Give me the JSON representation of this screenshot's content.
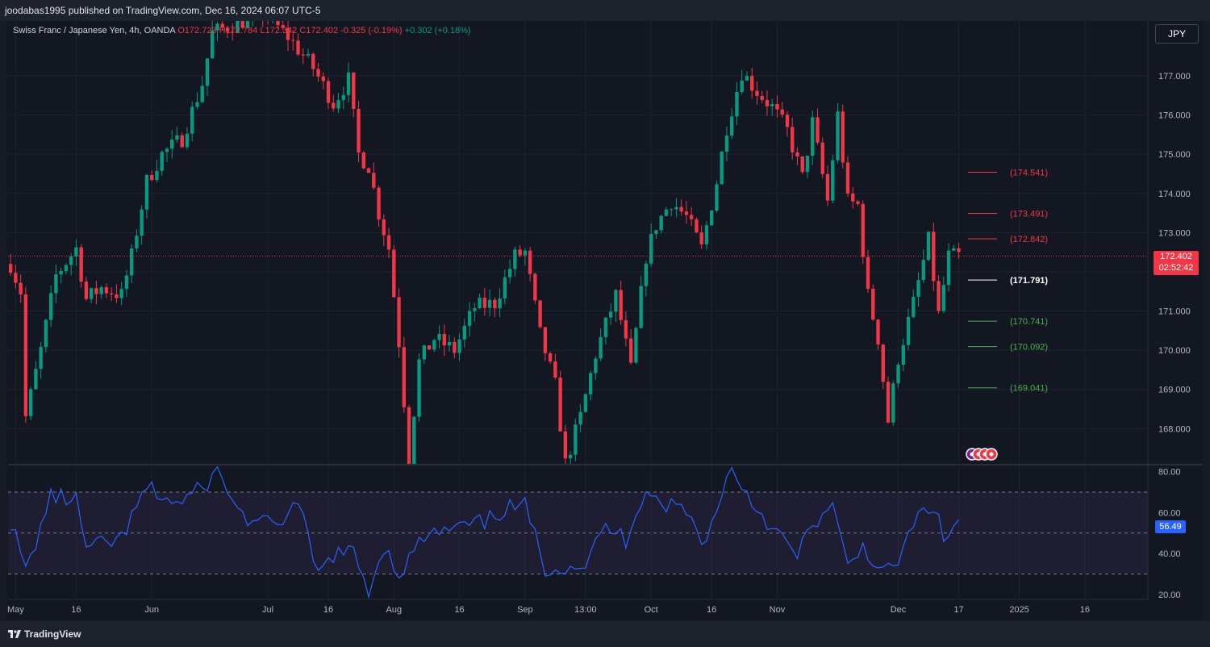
{
  "header": {
    "published": "joodabas1995 published on TradingView.com, Dec 16, 2024 06:07 UTC-5"
  },
  "legend": {
    "symbol": "Swiss Franc / Japanese Yen, 4h, OANDA",
    "o": "O172.723",
    "h": "H172.784",
    "l": "L172.342",
    "c": "C172.402",
    "change": "-0.325 (-0.19%)",
    "change2": "+0.302 (+0.18%)"
  },
  "currency_button": "JPY",
  "last_price": {
    "value": "172.402",
    "countdown": "02:52:42"
  },
  "rsi_value": "56.49",
  "footer": {
    "brand": "TradingView"
  },
  "colors": {
    "up": "#089981",
    "down": "#f23645",
    "rsi": "#2962ff",
    "level_red": "#f23645",
    "level_green": "#4caf50",
    "pivot": "#ffffff"
  },
  "chart_data": [
    {
      "type": "candlestick",
      "symbol": "CHF/JPY",
      "timeframe": "4h",
      "y_ticks": [
        "168.000",
        "169.000",
        "170.000",
        "171.000",
        "172.000",
        "173.000",
        "174.000",
        "175.000",
        "176.000",
        "177.000"
      ],
      "ylim": [
        167.1,
        178.4
      ],
      "x_ticks": [
        "May",
        "16",
        "Jun",
        "Jul",
        "16",
        "Aug",
        "16",
        "Sep",
        "13:00",
        "Oct",
        "16",
        "Nov",
        "Dec",
        "17",
        "2025",
        "16"
      ],
      "x_tick_pos": [
        1,
        13,
        28,
        51,
        63,
        76,
        89,
        102,
        114,
        127,
        139,
        152,
        176,
        188,
        200,
        213
      ],
      "x_range": [
        0,
        226
      ],
      "candles_end_index": 188,
      "keyframes": [
        {
          "x": 0,
          "p": 172.2
        },
        {
          "x": 2,
          "p": 171.5
        },
        {
          "x": 3,
          "p": 168.3
        },
        {
          "x": 6,
          "p": 170.0
        },
        {
          "x": 9,
          "p": 171.9
        },
        {
          "x": 13,
          "p": 172.6
        },
        {
          "x": 15,
          "p": 171.3
        },
        {
          "x": 18,
          "p": 171.6
        },
        {
          "x": 22,
          "p": 171.4
        },
        {
          "x": 24,
          "p": 172.4
        },
        {
          "x": 27,
          "p": 174.3
        },
        {
          "x": 30,
          "p": 175.0
        },
        {
          "x": 34,
          "p": 175.4
        },
        {
          "x": 38,
          "p": 176.8
        },
        {
          "x": 40,
          "p": 178.1
        },
        {
          "x": 44,
          "p": 178.3
        },
        {
          "x": 50,
          "p": 178.6
        },
        {
          "x": 55,
          "p": 178.0
        },
        {
          "x": 60,
          "p": 177.2
        },
        {
          "x": 64,
          "p": 176.3
        },
        {
          "x": 67,
          "p": 176.9
        },
        {
          "x": 69,
          "p": 175.0
        },
        {
          "x": 71,
          "p": 174.7
        },
        {
          "x": 73,
          "p": 173.5
        },
        {
          "x": 75,
          "p": 172.6
        },
        {
          "x": 77,
          "p": 170.2
        },
        {
          "x": 79,
          "p": 167.2
        },
        {
          "x": 81,
          "p": 169.7
        },
        {
          "x": 84,
          "p": 170.3
        },
        {
          "x": 88,
          "p": 170.0
        },
        {
          "x": 92,
          "p": 171.1
        },
        {
          "x": 96,
          "p": 171.2
        },
        {
          "x": 100,
          "p": 172.4
        },
        {
          "x": 102,
          "p": 172.5
        },
        {
          "x": 105,
          "p": 170.4
        },
        {
          "x": 108,
          "p": 169.1
        },
        {
          "x": 110,
          "p": 167.1
        },
        {
          "x": 113,
          "p": 168.3
        },
        {
          "x": 116,
          "p": 169.9
        },
        {
          "x": 120,
          "p": 171.4
        },
        {
          "x": 123,
          "p": 169.5
        },
        {
          "x": 126,
          "p": 172.4
        },
        {
          "x": 128,
          "p": 173.2
        },
        {
          "x": 131,
          "p": 173.8
        },
        {
          "x": 134,
          "p": 173.4
        },
        {
          "x": 137,
          "p": 172.6
        },
        {
          "x": 140,
          "p": 174.3
        },
        {
          "x": 142,
          "p": 175.7
        },
        {
          "x": 145,
          "p": 177.1
        },
        {
          "x": 148,
          "p": 176.6
        },
        {
          "x": 151,
          "p": 176.2
        },
        {
          "x": 154,
          "p": 175.6
        },
        {
          "x": 157,
          "p": 174.4
        },
        {
          "x": 159,
          "p": 175.8
        },
        {
          "x": 162,
          "p": 173.8
        },
        {
          "x": 164,
          "p": 176.0
        },
        {
          "x": 166,
          "p": 173.8
        },
        {
          "x": 168,
          "p": 173.7
        },
        {
          "x": 170,
          "p": 171.4
        },
        {
          "x": 172,
          "p": 170.3
        },
        {
          "x": 174,
          "p": 168.2
        },
        {
          "x": 176,
          "p": 169.8
        },
        {
          "x": 179,
          "p": 171.2
        },
        {
          "x": 182,
          "p": 172.8
        },
        {
          "x": 184,
          "p": 170.9
        },
        {
          "x": 186,
          "p": 172.4
        },
        {
          "x": 188,
          "p": 172.4
        }
      ],
      "levels": [
        {
          "label": "(174.541)",
          "value": 174.541,
          "color": "red"
        },
        {
          "label": "(173.491)",
          "value": 173.491,
          "color": "red"
        },
        {
          "label": "(172.842)",
          "value": 172.842,
          "color": "red"
        },
        {
          "label": "(171.791)",
          "value": 171.791,
          "color": "white"
        },
        {
          "label": "(170.741)",
          "value": 170.741,
          "color": "green"
        },
        {
          "label": "(170.092)",
          "value": 170.092,
          "color": "green"
        },
        {
          "label": "(169.041)",
          "value": 169.041,
          "color": "green"
        }
      ],
      "last_price": 172.402
    },
    {
      "type": "line",
      "name": "RSI",
      "y_ticks": [
        "20.00",
        "40.00",
        "60.00",
        "80.00"
      ],
      "ylim": [
        18,
        83
      ],
      "bands": [
        30,
        50,
        70
      ],
      "last_value": 56.49,
      "keyframes": [
        {
          "x": 0,
          "v": 56
        },
        {
          "x": 3,
          "v": 31
        },
        {
          "x": 8,
          "v": 68
        },
        {
          "x": 13,
          "v": 66
        },
        {
          "x": 15,
          "v": 42
        },
        {
          "x": 22,
          "v": 47
        },
        {
          "x": 27,
          "v": 72
        },
        {
          "x": 33,
          "v": 64
        },
        {
          "x": 38,
          "v": 72
        },
        {
          "x": 41,
          "v": 80
        },
        {
          "x": 46,
          "v": 58
        },
        {
          "x": 52,
          "v": 53
        },
        {
          "x": 57,
          "v": 64
        },
        {
          "x": 61,
          "v": 29
        },
        {
          "x": 64,
          "v": 40
        },
        {
          "x": 68,
          "v": 40
        },
        {
          "x": 71,
          "v": 22
        },
        {
          "x": 74,
          "v": 44
        },
        {
          "x": 77,
          "v": 30
        },
        {
          "x": 82,
          "v": 48
        },
        {
          "x": 88,
          "v": 52
        },
        {
          "x": 94,
          "v": 55
        },
        {
          "x": 98,
          "v": 62
        },
        {
          "x": 102,
          "v": 63
        },
        {
          "x": 106,
          "v": 33
        },
        {
          "x": 110,
          "v": 34
        },
        {
          "x": 114,
          "v": 35
        },
        {
          "x": 118,
          "v": 53
        },
        {
          "x": 122,
          "v": 47
        },
        {
          "x": 126,
          "v": 73
        },
        {
          "x": 129,
          "v": 64
        },
        {
          "x": 133,
          "v": 63
        },
        {
          "x": 138,
          "v": 45
        },
        {
          "x": 141,
          "v": 71
        },
        {
          "x": 143,
          "v": 81
        },
        {
          "x": 148,
          "v": 62
        },
        {
          "x": 152,
          "v": 50
        },
        {
          "x": 156,
          "v": 38
        },
        {
          "x": 159,
          "v": 55
        },
        {
          "x": 163,
          "v": 62
        },
        {
          "x": 166,
          "v": 33
        },
        {
          "x": 169,
          "v": 44
        },
        {
          "x": 173,
          "v": 30
        },
        {
          "x": 175,
          "v": 32
        },
        {
          "x": 180,
          "v": 58
        },
        {
          "x": 183,
          "v": 64
        },
        {
          "x": 185,
          "v": 46
        },
        {
          "x": 188,
          "v": 56.49
        }
      ]
    }
  ]
}
